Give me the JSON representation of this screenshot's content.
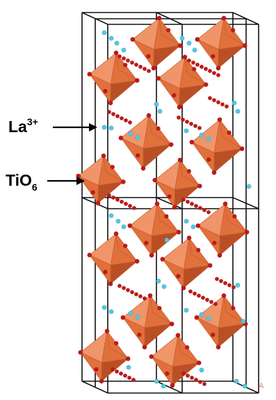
{
  "labels": {
    "la": {
      "main": "La",
      "sup": "3+"
    },
    "tio": {
      "main": "TiO",
      "sub": "6"
    },
    "corner": "A"
  },
  "colors": {
    "octahedron": "#e0703c",
    "octahedron_dark": "#b94f25",
    "octahedron_light": "#f0956a",
    "oxygen": "#c21818",
    "lanthanum": "#4fc9e6",
    "frame": "#111111"
  }
}
